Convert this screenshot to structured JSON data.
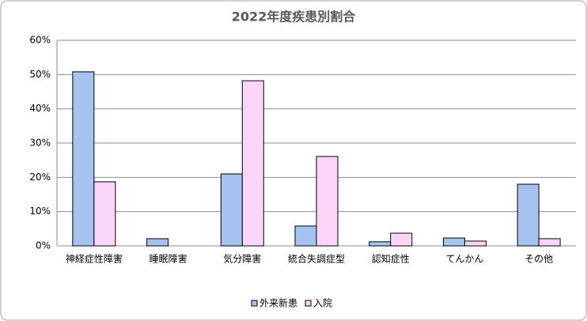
{
  "chart_data": {
    "type": "bar",
    "title": "2022年度疾患別割合",
    "categories": [
      "神経症性障害",
      "睡眠障害",
      "気分障害",
      "統合失調症型",
      "認知症性",
      "てんかん",
      "その他"
    ],
    "series": [
      {
        "name": "外来新患",
        "color": "#a6c2ef",
        "values": [
          50.8,
          2.1,
          21,
          5.8,
          1.2,
          2.3,
          18
        ]
      },
      {
        "name": "入院",
        "color": "#fbd5f7",
        "values": [
          18.7,
          0,
          48.2,
          26.1,
          3.7,
          1.4,
          2.1
        ]
      }
    ],
    "ylim": [
      0,
      60
    ],
    "yticks": [
      {
        "value": 0,
        "label": "0%"
      },
      {
        "value": 10,
        "label": "10%"
      },
      {
        "value": 20,
        "label": "20%"
      },
      {
        "value": 30,
        "label": "30%"
      },
      {
        "value": 40,
        "label": "40%"
      },
      {
        "value": 50,
        "label": "50%"
      },
      {
        "value": 60,
        "label": "60%"
      }
    ],
    "grid": true,
    "legend": "bottom"
  }
}
